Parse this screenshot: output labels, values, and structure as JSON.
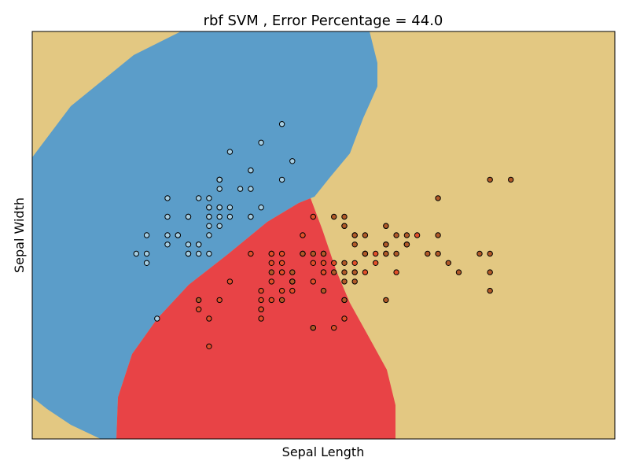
{
  "chart_data": {
    "type": "scatter",
    "title": "rbf SVM , Error Percentage = 44.0",
    "xlabel": "Sepal Length",
    "ylabel": "Sepal Width",
    "xlim": [
      3.3,
      8.9
    ],
    "ylim": [
      1.0,
      5.4
    ],
    "ticks_visible": false,
    "grid": false,
    "legend": "none",
    "background_regions": [
      {
        "class": "setosa",
        "color": "#5b9dc9"
      },
      {
        "class": "versicolor",
        "color": "#e84346"
      },
      {
        "class": "virginica",
        "color": "#e3c882"
      }
    ],
    "series": [
      {
        "class": "setosa",
        "color": "#a6cee3",
        "points": [
          [
            5.1,
            3.5
          ],
          [
            4.9,
            3.0
          ],
          [
            4.7,
            3.2
          ],
          [
            4.6,
            3.1
          ],
          [
            5.0,
            3.6
          ],
          [
            5.4,
            3.9
          ],
          [
            4.6,
            3.4
          ],
          [
            5.0,
            3.4
          ],
          [
            4.4,
            2.9
          ],
          [
            4.9,
            3.1
          ],
          [
            5.4,
            3.7
          ],
          [
            4.8,
            3.4
          ],
          [
            4.8,
            3.0
          ],
          [
            4.3,
            3.0
          ],
          [
            5.8,
            4.0
          ],
          [
            5.7,
            4.4
          ],
          [
            5.4,
            3.9
          ],
          [
            5.1,
            3.5
          ],
          [
            5.7,
            3.8
          ],
          [
            5.1,
            3.8
          ],
          [
            5.4,
            3.4
          ],
          [
            5.1,
            3.7
          ],
          [
            4.6,
            3.6
          ],
          [
            5.1,
            3.3
          ],
          [
            4.8,
            3.4
          ],
          [
            5.0,
            3.0
          ],
          [
            5.0,
            3.4
          ],
          [
            5.2,
            3.5
          ],
          [
            5.2,
            3.4
          ],
          [
            4.7,
            3.2
          ],
          [
            4.8,
            3.1
          ],
          [
            5.4,
            3.4
          ],
          [
            5.2,
            4.1
          ],
          [
            5.5,
            4.2
          ],
          [
            4.9,
            3.1
          ],
          [
            5.0,
            3.2
          ],
          [
            5.5,
            3.5
          ],
          [
            4.9,
            3.6
          ],
          [
            4.4,
            3.0
          ],
          [
            5.1,
            3.4
          ],
          [
            5.0,
            3.5
          ],
          [
            4.5,
            2.3
          ],
          [
            4.4,
            3.2
          ],
          [
            5.0,
            3.5
          ],
          [
            5.1,
            3.8
          ],
          [
            4.8,
            3.0
          ],
          [
            5.1,
            3.8
          ],
          [
            4.6,
            3.2
          ],
          [
            5.3,
            3.7
          ],
          [
            5.0,
            3.3
          ]
        ]
      },
      {
        "class": "versicolor",
        "color": "#e2502a",
        "points": [
          [
            7.0,
            3.2
          ],
          [
            6.4,
            3.2
          ],
          [
            6.9,
            3.1
          ],
          [
            5.5,
            2.3
          ],
          [
            6.5,
            2.8
          ],
          [
            5.7,
            2.8
          ],
          [
            6.3,
            3.3
          ],
          [
            4.9,
            2.4
          ],
          [
            6.6,
            2.9
          ],
          [
            5.2,
            2.7
          ],
          [
            5.0,
            2.0
          ],
          [
            5.9,
            3.0
          ],
          [
            6.0,
            2.2
          ],
          [
            6.1,
            2.9
          ],
          [
            5.6,
            2.9
          ],
          [
            6.7,
            3.1
          ],
          [
            5.6,
            3.0
          ],
          [
            5.8,
            2.7
          ],
          [
            6.2,
            2.2
          ],
          [
            5.6,
            2.5
          ],
          [
            5.9,
            3.2
          ],
          [
            6.1,
            2.8
          ],
          [
            6.3,
            2.5
          ],
          [
            6.1,
            2.8
          ],
          [
            6.4,
            2.9
          ],
          [
            6.6,
            3.0
          ],
          [
            6.8,
            2.8
          ],
          [
            6.7,
            3.0
          ],
          [
            6.0,
            2.9
          ],
          [
            5.7,
            2.6
          ],
          [
            5.5,
            2.4
          ],
          [
            5.5,
            2.4
          ],
          [
            5.8,
            2.7
          ],
          [
            6.0,
            2.7
          ],
          [
            5.4,
            3.0
          ],
          [
            6.0,
            3.4
          ],
          [
            6.7,
            3.1
          ],
          [
            6.3,
            2.3
          ],
          [
            5.6,
            3.0
          ],
          [
            5.5,
            2.5
          ],
          [
            5.5,
            2.6
          ],
          [
            6.1,
            3.0
          ],
          [
            5.8,
            2.6
          ],
          [
            5.0,
            2.3
          ],
          [
            5.6,
            2.7
          ],
          [
            5.7,
            3.0
          ],
          [
            5.7,
            2.9
          ],
          [
            6.2,
            2.9
          ],
          [
            5.1,
            2.5
          ],
          [
            5.7,
            2.8
          ]
        ]
      },
      {
        "class": "virginica",
        "color": "#b15928",
        "points": [
          [
            6.3,
            3.3
          ],
          [
            5.8,
            2.7
          ],
          [
            7.1,
            3.0
          ],
          [
            6.3,
            2.9
          ],
          [
            6.5,
            3.0
          ],
          [
            7.6,
            3.0
          ],
          [
            4.9,
            2.5
          ],
          [
            7.3,
            2.9
          ],
          [
            6.7,
            2.5
          ],
          [
            7.2,
            3.6
          ],
          [
            6.5,
            3.2
          ],
          [
            6.4,
            2.7
          ],
          [
            6.8,
            3.0
          ],
          [
            5.7,
            2.5
          ],
          [
            5.8,
            2.8
          ],
          [
            6.4,
            3.2
          ],
          [
            6.5,
            3.0
          ],
          [
            7.7,
            3.8
          ],
          [
            7.7,
            2.6
          ],
          [
            6.0,
            2.2
          ],
          [
            6.9,
            3.2
          ],
          [
            5.6,
            2.8
          ],
          [
            7.7,
            2.8
          ],
          [
            6.3,
            2.7
          ],
          [
            6.7,
            3.3
          ],
          [
            7.2,
            3.2
          ],
          [
            6.2,
            2.8
          ],
          [
            6.1,
            3.0
          ],
          [
            6.4,
            2.8
          ],
          [
            7.2,
            3.0
          ],
          [
            7.4,
            2.8
          ],
          [
            7.9,
            3.8
          ],
          [
            6.4,
            2.8
          ],
          [
            6.3,
            2.8
          ],
          [
            6.1,
            2.6
          ],
          [
            7.7,
            3.0
          ],
          [
            6.3,
            3.4
          ],
          [
            6.4,
            3.1
          ],
          [
            6.0,
            3.0
          ],
          [
            6.9,
            3.1
          ],
          [
            6.7,
            3.1
          ],
          [
            6.9,
            3.1
          ],
          [
            5.8,
            2.7
          ],
          [
            6.8,
            3.2
          ],
          [
            6.7,
            3.3
          ],
          [
            6.7,
            3.0
          ],
          [
            6.3,
            2.5
          ],
          [
            6.5,
            3.0
          ],
          [
            6.2,
            3.4
          ],
          [
            5.9,
            3.0
          ]
        ]
      }
    ]
  }
}
